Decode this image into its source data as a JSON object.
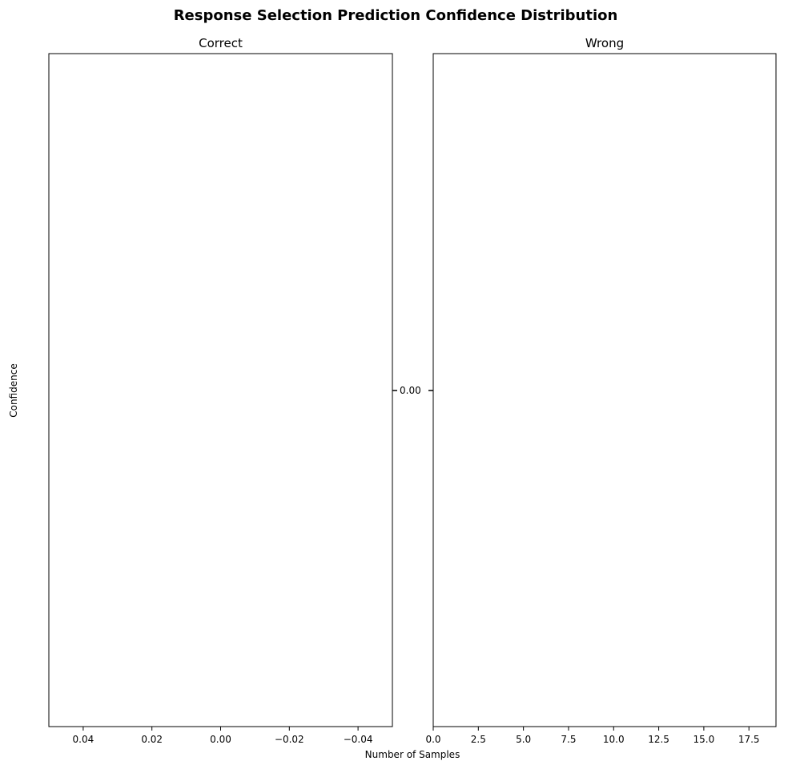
{
  "chart_data": {
    "title": "Response Selection Prediction Confidence Distribution",
    "xlabel": "Number of Samples",
    "ylabel": "Confidence",
    "panels": [
      {
        "title": "Correct",
        "type": "bar",
        "orientation": "horizontal",
        "xlim": [
          0.05,
          -0.05
        ],
        "x_ticks": [
          0.04,
          0.02,
          0.0,
          -0.02,
          -0.04
        ],
        "x_tick_labels": [
          "0.04",
          "0.02",
          "0.00",
          "−0.02",
          "−0.04"
        ],
        "y_ticks": [
          0.0
        ],
        "y_tick_labels": [
          "0.00"
        ],
        "values": []
      },
      {
        "title": "Wrong",
        "type": "bar",
        "orientation": "horizontal",
        "xlim": [
          0,
          19
        ],
        "x_ticks": [
          0,
          2.5,
          5,
          7.5,
          10,
          12.5,
          15,
          17.5
        ],
        "x_tick_labels": [
          "0.0",
          "2.5",
          "5.0",
          "7.5",
          "10.0",
          "12.5",
          "15.0",
          "17.5"
        ],
        "y_ticks": [
          0.0
        ],
        "y_tick_labels": [
          "0.00"
        ],
        "values": []
      }
    ]
  }
}
